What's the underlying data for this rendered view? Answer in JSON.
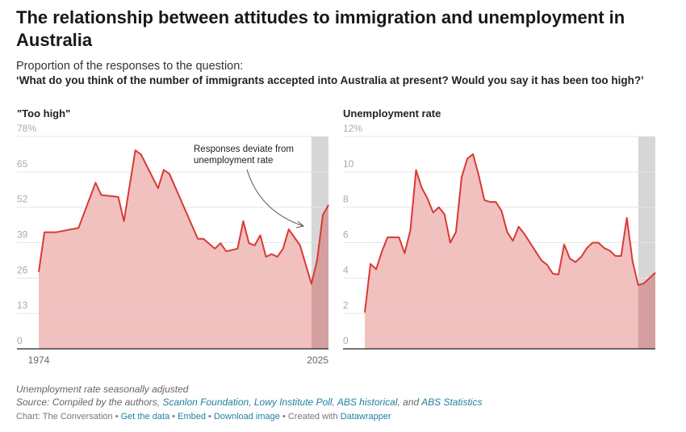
{
  "title": "The relationship between attitudes to immigration and unemployment in Australia",
  "subtitle": "Proportion of the responses to the question:",
  "question": "‘What do you think of the number of immigrants accepted into Australia at present? Would you say it has been too high?’",
  "notes": {
    "line1": "Unemployment rate seasonally adjusted",
    "source_prefix": "Source: Compiled by the authors, ",
    "sources": [
      "Scanlon Foundation",
      "Lowy Institute Poll",
      "ABS historical",
      "ABS Statistics"
    ],
    "sep1": ", ",
    "sep2": ", ",
    "sep3": ", and "
  },
  "footer": {
    "credit": "Chart: The Conversation",
    "get_data": "Get the data",
    "embed": "Embed",
    "download": "Download image",
    "created": "Created with",
    "datawrapper": "Datawrapper",
    "dot": " • "
  },
  "colors": {
    "line": "#d93a34",
    "fill": "#f0bebd",
    "shade": "#d6d6d6",
    "shade_fill": "#d4a09f"
  },
  "chart_data": [
    {
      "type": "area",
      "title": "\"Too high\"",
      "ylim": [
        0,
        78
      ],
      "yticks": [
        0,
        13,
        26,
        39,
        52,
        65,
        78
      ],
      "ytick_labels": [
        "0",
        "13",
        "26",
        "39",
        "52",
        "65",
        "78%"
      ],
      "xlim": [
        1974,
        2025
      ],
      "xtick_labels": [
        "1974",
        "2025"
      ],
      "shaded_range": [
        2022,
        2025
      ],
      "annotation": [
        "Responses deviate from",
        "unemployment rate"
      ],
      "x": [
        1974,
        1975,
        1977,
        1981,
        1984,
        1985,
        1988,
        1989,
        1991,
        1992,
        1995,
        1996,
        1997,
        2002,
        2003,
        2005,
        2006,
        2007,
        2009,
        2010,
        2011,
        2012,
        2013,
        2014,
        2015,
        2016,
        2017,
        2018,
        2020,
        2022,
        2023,
        2024,
        2025
      ],
      "values": [
        28.2,
        42.8,
        42.8,
        44.4,
        61,
        56.5,
        55.8,
        46.9,
        72.9,
        71.4,
        59,
        65.7,
        64.3,
        40.4,
        40.4,
        36.8,
        38.8,
        35.8,
        36.8,
        46.9,
        38.8,
        38,
        41.7,
        33.8,
        34.8,
        33.8,
        36.8,
        43.9,
        38,
        23.9,
        32.5,
        49.1,
        52.9
      ]
    },
    {
      "type": "area",
      "title": "Unemployment rate",
      "ylim": [
        0,
        12
      ],
      "yticks": [
        0,
        2,
        4,
        6,
        8,
        10,
        12
      ],
      "ytick_labels": [
        "0",
        "2",
        "4",
        "6",
        "8",
        "10",
        "12%"
      ],
      "xlim": [
        1974,
        2025
      ],
      "shaded_range": [
        2022,
        2025
      ],
      "x": [
        1974,
        1975,
        1976,
        1977,
        1978,
        1980,
        1981,
        1982,
        1983,
        1984,
        1985,
        1986,
        1987,
        1988,
        1989,
        1990,
        1991,
        1992,
        1993,
        1994,
        1995,
        1996,
        1997,
        1998,
        1999,
        2000,
        2001,
        2002,
        2003,
        2004,
        2005,
        2006,
        2007,
        2008,
        2009,
        2010,
        2011,
        2012,
        2013,
        2014,
        2015,
        2016,
        2017,
        2018,
        2019,
        2020,
        2021,
        2022,
        2023,
        2025
      ],
      "values": [
        2.05,
        4.8,
        4.5,
        5.5,
        6.3,
        6.3,
        5.4,
        6.7,
        10.1,
        9.1,
        8.5,
        7.7,
        8.0,
        7.6,
        6.0,
        6.6,
        9.7,
        10.75,
        11.0,
        9.8,
        8.4,
        8.3,
        8.3,
        7.8,
        6.6,
        6.1,
        6.9,
        6.5,
        6.0,
        5.5,
        5.0,
        4.75,
        4.25,
        4.2,
        5.9,
        5.1,
        4.9,
        5.2,
        5.7,
        6.0,
        6.0,
        5.7,
        5.55,
        5.25,
        5.25,
        7.4,
        4.95,
        3.6,
        3.7,
        4.3
      ]
    }
  ]
}
